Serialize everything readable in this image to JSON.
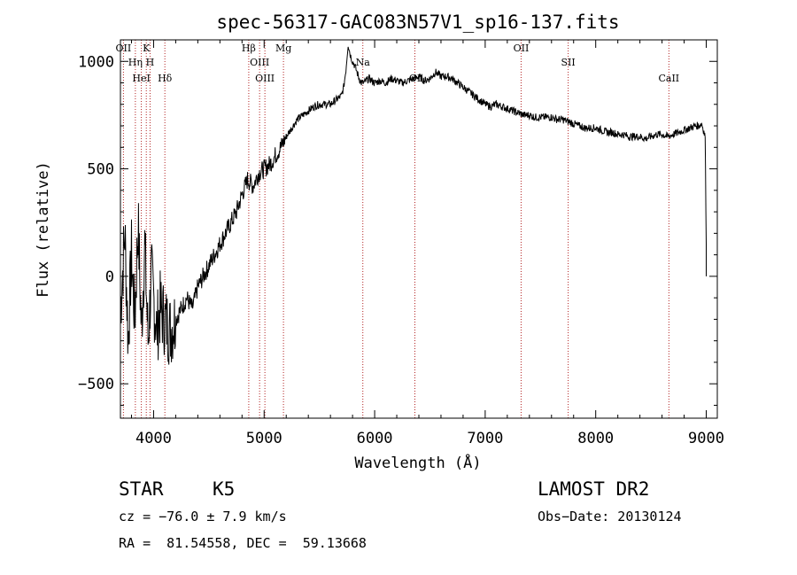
{
  "chart_data": {
    "type": "line",
    "title": "spec-56317-GAC083N57V1_sp16-137.fits",
    "xlabel": "Wavelength (Å)",
    "ylabel": "Flux (relative)",
    "xlim": [
      3700,
      9100
    ],
    "ylim": [
      -660,
      1100
    ],
    "xticks": [
      4000,
      5000,
      6000,
      7000,
      8000,
      9000
    ],
    "yticks": [
      -500,
      0,
      500,
      1000
    ],
    "xtick_labels": [
      "4000",
      "5000",
      "6000",
      "7000",
      "8000",
      "9000"
    ],
    "ytick_labels": [
      "−500",
      "0",
      "500",
      "1000"
    ],
    "series": [
      {
        "name": "flux",
        "x": [
          3700,
          3740,
          3770,
          3800,
          3830,
          3860,
          3890,
          3920,
          3950,
          3980,
          4000,
          4030,
          4060,
          4100,
          4150,
          4200,
          4250,
          4300,
          4350,
          4400,
          4450,
          4500,
          4550,
          4600,
          4650,
          4700,
          4750,
          4800,
          4850,
          4900,
          4950,
          5000,
          5050,
          5100,
          5150,
          5200,
          5250,
          5300,
          5350,
          5400,
          5450,
          5500,
          5550,
          5600,
          5650,
          5700,
          5720,
          5740,
          5760,
          5780,
          5800,
          5820,
          5840,
          5860,
          5880,
          5900,
          5950,
          6000,
          6050,
          6100,
          6150,
          6200,
          6250,
          6300,
          6350,
          6400,
          6450,
          6500,
          6550,
          6600,
          6650,
          6700,
          6750,
          6800,
          6850,
          6900,
          6950,
          7000,
          7050,
          7100,
          7150,
          7200,
          7250,
          7300,
          7350,
          7400,
          7450,
          7500,
          7550,
          7600,
          7650,
          7700,
          7750,
          7800,
          7850,
          7900,
          7950,
          8000,
          8050,
          8100,
          8150,
          8200,
          8250,
          8300,
          8350,
          8400,
          8450,
          8500,
          8550,
          8600,
          8650,
          8700,
          8750,
          8800,
          8850,
          8900,
          8930,
          8960,
          8990,
          9000
        ],
        "values": [
          -150,
          200,
          -300,
          100,
          -200,
          250,
          -250,
          150,
          -300,
          0,
          -100,
          -250,
          -150,
          -200,
          -250,
          -200,
          -150,
          -100,
          -150,
          -50,
          0,
          50,
          100,
          150,
          200,
          250,
          300,
          380,
          450,
          420,
          480,
          500,
          520,
          560,
          600,
          650,
          690,
          730,
          750,
          770,
          790,
          800,
          800,
          800,
          820,
          840,
          880,
          960,
          1080,
          1030,
          1000,
          980,
          950,
          920,
          900,
          900,
          920,
          900,
          910,
          900,
          920,
          910,
          900,
          910,
          920,
          930,
          910,
          920,
          950,
          930,
          930,
          920,
          900,
          880,
          860,
          840,
          820,
          800,
          790,
          800,
          790,
          780,
          770,
          760,
          750,
          750,
          740,
          740,
          740,
          740,
          730,
          730,
          720,
          710,
          700,
          690,
          690,
          690,
          680,
          670,
          670,
          660,
          660,
          650,
          650,
          650,
          640,
          650,
          660,
          660,
          650,
          660,
          670,
          680,
          690,
          700,
          700,
          710,
          650,
          150
        ]
      }
    ],
    "lines": [
      {
        "label": "OII",
        "x": 3727
      },
      {
        "label": "Hη",
        "x": 3835
      },
      {
        "label": "HeI",
        "x": 3889
      },
      {
        "label": "K",
        "x": 3934
      },
      {
        "label": "H",
        "x": 3968
      },
      {
        "label": "Hδ",
        "x": 4102
      },
      {
        "label": "Hβ",
        "x": 4861
      },
      {
        "label": "OIII",
        "x": 4959
      },
      {
        "label": "OIII",
        "x": 5007
      },
      {
        "label": "Mg",
        "x": 5175
      },
      {
        "label": "Na",
        "x": 5893
      },
      {
        "label": "OI",
        "x": 6364
      },
      {
        "label": "OII",
        "x": 7325
      },
      {
        "label": "SII",
        "x": 7751
      },
      {
        "label": "CaII",
        "x": 8662
      }
    ]
  },
  "footer": {
    "object_class": "STAR",
    "subclass": "K5",
    "survey": "LAMOST DR2",
    "cz": "cz = −76.0 ± 7.9 km/s",
    "obs_date": "Obs−Date: 20130124",
    "coords": "RA =  81.54558, DEC =  59.13668"
  }
}
